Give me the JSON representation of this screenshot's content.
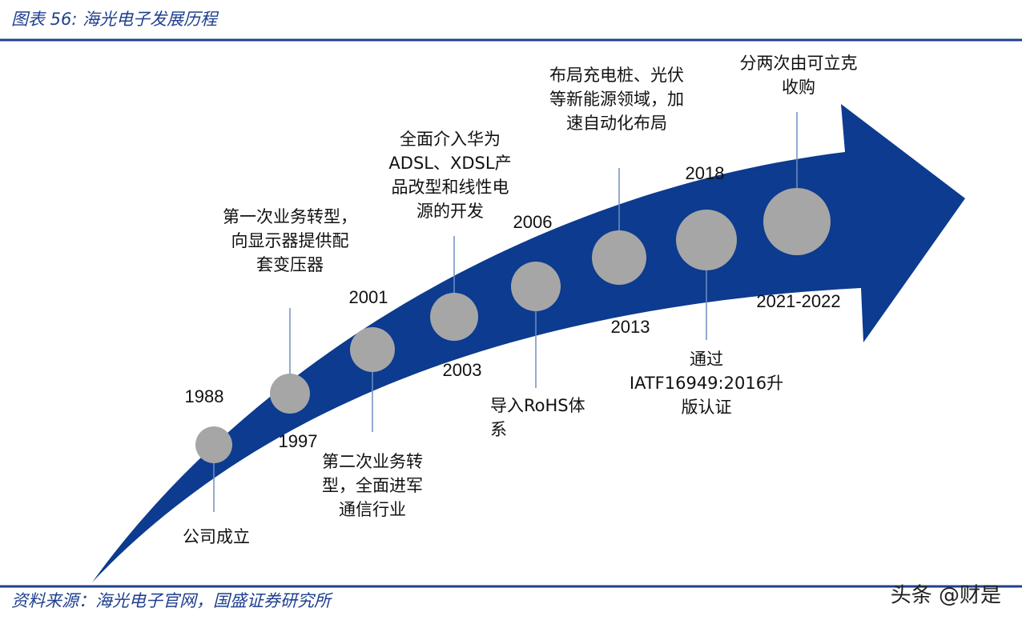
{
  "header": {
    "title": "图表 56:  海光电子发展历程"
  },
  "milestones": [
    {
      "year": "1988",
      "lines": [
        "公司成立"
      ]
    },
    {
      "year": "1997",
      "lines": [
        "第一次业务转型，",
        "向显示器提供配",
        "套变压器"
      ]
    },
    {
      "year": "2001",
      "lines": [
        "第二次业务转",
        "型，全面进军",
        "通信行业"
      ]
    },
    {
      "year": "2003",
      "lines": [
        "全面介入华为",
        "ADSL、XDSL产",
        "品改型和线性电",
        "源的开发"
      ]
    },
    {
      "year": "2006",
      "lines": [
        "导入RoHS体",
        "系"
      ]
    },
    {
      "year": "2013",
      "lines": [
        "布局充电桩、光伏",
        "等新能源领域，加",
        "速自动化布局"
      ]
    },
    {
      "year": "2018",
      "lines": [
        "通过",
        "IATF16949:2016升",
        "版认证"
      ]
    },
    {
      "year": "2021-2022",
      "lines": [
        "分两次由可立克",
        "收购"
      ]
    }
  ],
  "footer": {
    "source": "资料来源：海光电子官网，国盛证券研究所",
    "watermark": "头条 @财是"
  }
}
